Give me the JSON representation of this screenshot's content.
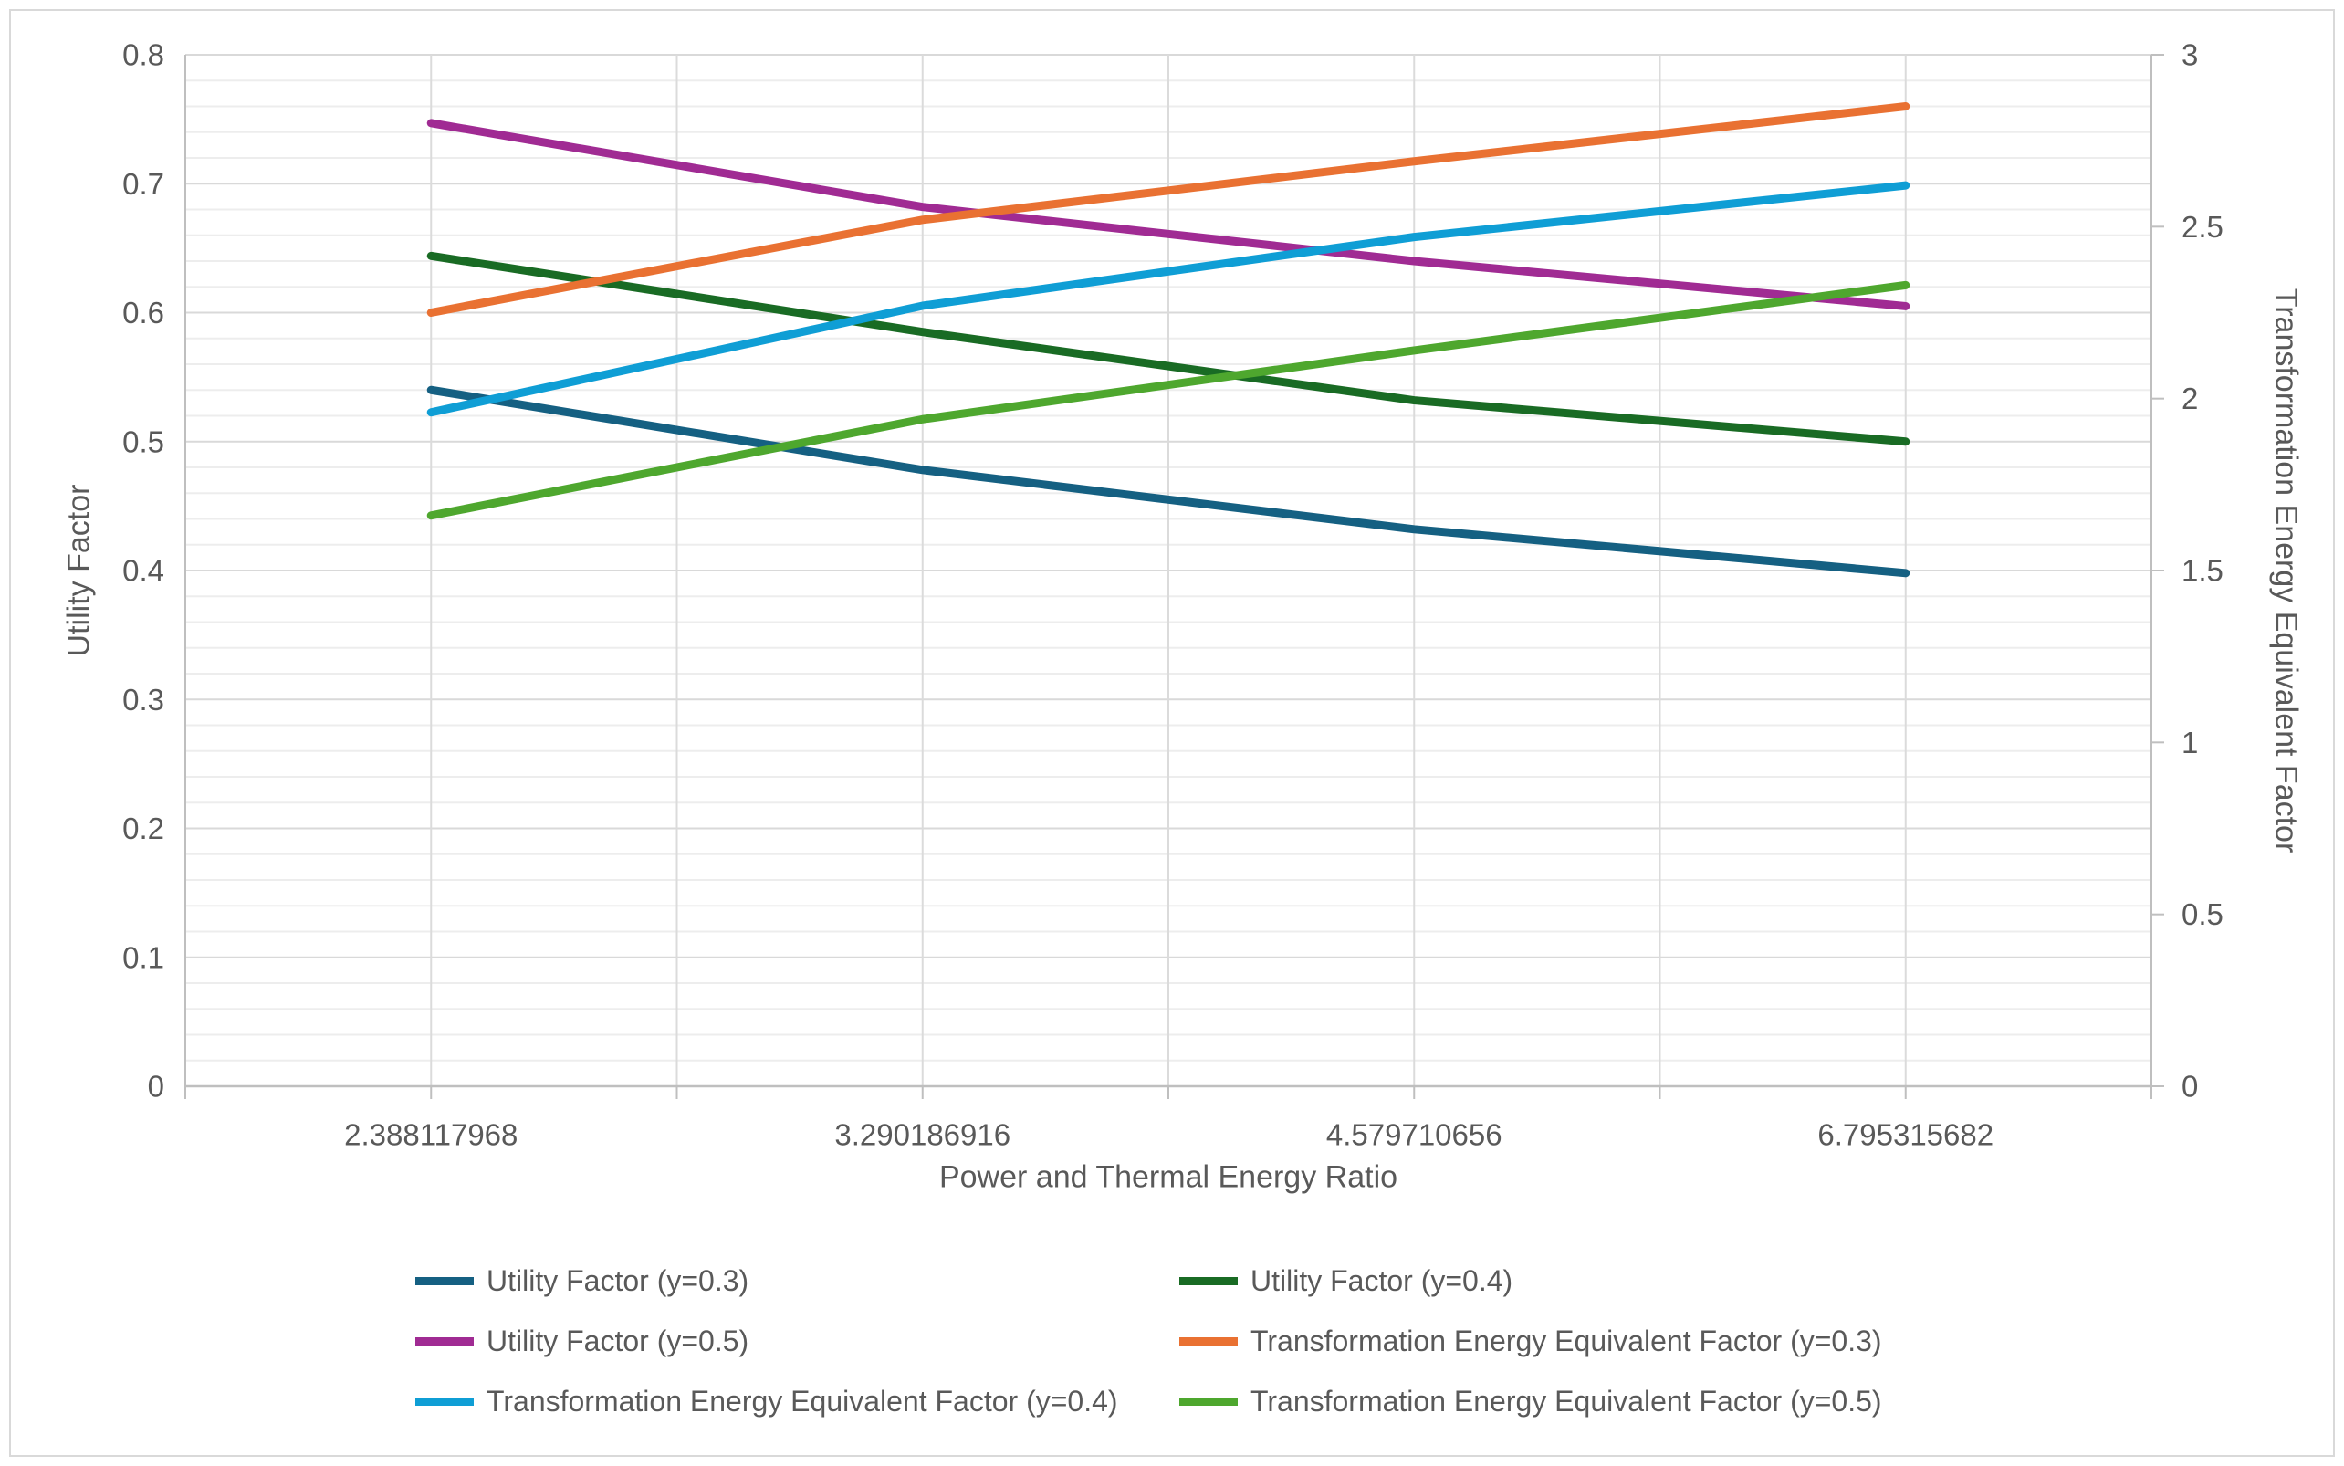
{
  "window": {
    "background": "#FFFFFF",
    "border_color": "#D9D9D9"
  },
  "chart_data": {
    "type": "line",
    "title": "",
    "x_axis_title": "Power and Thermal Energy Ratio",
    "x_categories": [
      "2.388117968",
      "3.290186916",
      "4.579710656",
      "6.795315682"
    ],
    "left_axis": {
      "title": "Utility Factor",
      "min": 0,
      "max": 0.8,
      "major_step": 0.1,
      "minor_step": 0.02,
      "tick_labels": [
        "0",
        "0.1",
        "0.2",
        "0.3",
        "0.4",
        "0.5",
        "0.6",
        "0.7",
        "0.8"
      ]
    },
    "right_axis": {
      "title": "Transformation Energy Equivalent Factor",
      "min": 0,
      "max": 3,
      "major_step": 0.5,
      "tick_labels": [
        "0",
        "0.5",
        "1",
        "1.5",
        "2",
        "2.5",
        "3"
      ]
    },
    "grid": {
      "major_horizontal": true,
      "minor_horizontal": true,
      "vertical": true
    },
    "legend": {
      "position": "bottom",
      "columns": [
        [
          0,
          2,
          4
        ],
        [
          1,
          3,
          5
        ]
      ]
    },
    "series": [
      {
        "name": "Utility Factor (y=0.3)",
        "axis": "left",
        "color": "#156082",
        "values": [
          0.54,
          0.478,
          0.432,
          0.398
        ]
      },
      {
        "name": "Utility Factor (y=0.4)",
        "axis": "left",
        "color": "#196B24",
        "values": [
          0.644,
          0.585,
          0.532,
          0.5
        ]
      },
      {
        "name": "Utility Factor (y=0.5)",
        "axis": "left",
        "color": "#A02B93",
        "values": [
          0.747,
          0.682,
          0.64,
          0.605
        ]
      },
      {
        "name": "Transformation Energy Equivalent Factor (y=0.3)",
        "axis": "right",
        "color": "#E97132",
        "values": [
          2.25,
          2.52,
          2.69,
          2.85
        ]
      },
      {
        "name": "Transformation Energy Equivalent Factor (y=0.4)",
        "axis": "right",
        "color": "#0F9ED5",
        "values": [
          1.96,
          2.27,
          2.47,
          2.62
        ]
      },
      {
        "name": "Transformation Energy Equivalent Factor (y=0.5)",
        "axis": "right",
        "color": "#4EA72E",
        "values": [
          1.66,
          1.94,
          2.14,
          2.33
        ]
      }
    ],
    "colors": {
      "grid_major": "#D9D9D9",
      "grid_minor": "#EDEDED",
      "grid_vertical": "#DBDBDB",
      "axis_line": "#BFBFBF",
      "text": "#595959"
    }
  }
}
